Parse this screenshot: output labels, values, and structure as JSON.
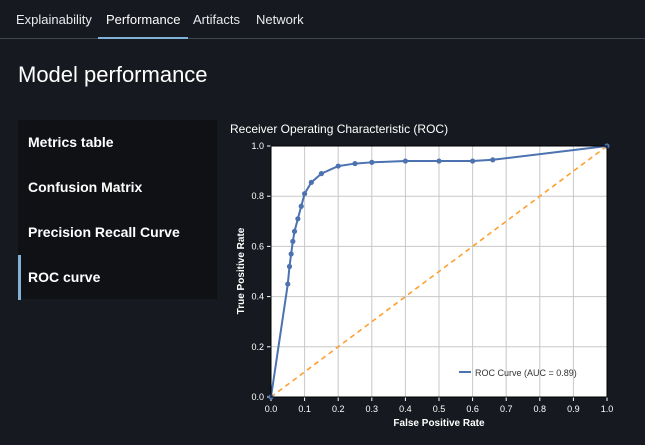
{
  "tabs": [
    {
      "label": "Explainability",
      "active": false
    },
    {
      "label": "Performance",
      "active": true
    },
    {
      "label": "Artifacts",
      "active": false
    },
    {
      "label": "Network",
      "active": false
    }
  ],
  "page_title": "Model performance",
  "sidebar": {
    "items": [
      {
        "label": "Metrics table",
        "active": false
      },
      {
        "label": "Confusion Matrix",
        "active": false
      },
      {
        "label": "Precision Recall Curve",
        "active": false
      },
      {
        "label": "ROC curve",
        "active": true
      }
    ]
  },
  "colors": {
    "background": "#16191f",
    "accent": "#7fb2d6",
    "roc_line": "#4c72b0",
    "diagonal": "#ff9f2e"
  },
  "chart_data": {
    "type": "line",
    "title": "Receiver Operating Characteristic (ROC)",
    "xlabel": "False Positive Rate",
    "ylabel": "True Positive Rate",
    "xlim": [
      0,
      1
    ],
    "ylim": [
      0,
      1
    ],
    "xticks": [
      "0.0",
      "0.1",
      "0.2",
      "0.3",
      "0.4",
      "0.5",
      "0.6",
      "0.7",
      "0.8",
      "0.9",
      "1.0"
    ],
    "yticks": [
      "0.0",
      "0.2",
      "0.4",
      "0.6",
      "0.8",
      "1.0"
    ],
    "grid": true,
    "legend_position": "bottom-right",
    "series": [
      {
        "name": "ROC Curve (AUC = 0.89)",
        "style": "solid",
        "x": [
          0,
          0.05,
          0.055,
          0.06,
          0.065,
          0.07,
          0.08,
          0.09,
          0.1,
          0.12,
          0.15,
          0.2,
          0.25,
          0.3,
          0.4,
          0.5,
          0.6,
          0.66,
          1.0
        ],
        "y": [
          0,
          0.45,
          0.52,
          0.57,
          0.62,
          0.66,
          0.71,
          0.76,
          0.81,
          0.855,
          0.89,
          0.92,
          0.93,
          0.935,
          0.94,
          0.94,
          0.94,
          0.945,
          1.0
        ]
      },
      {
        "style": "dashed",
        "x": [
          0,
          1
        ],
        "y": [
          0,
          1
        ]
      }
    ]
  }
}
